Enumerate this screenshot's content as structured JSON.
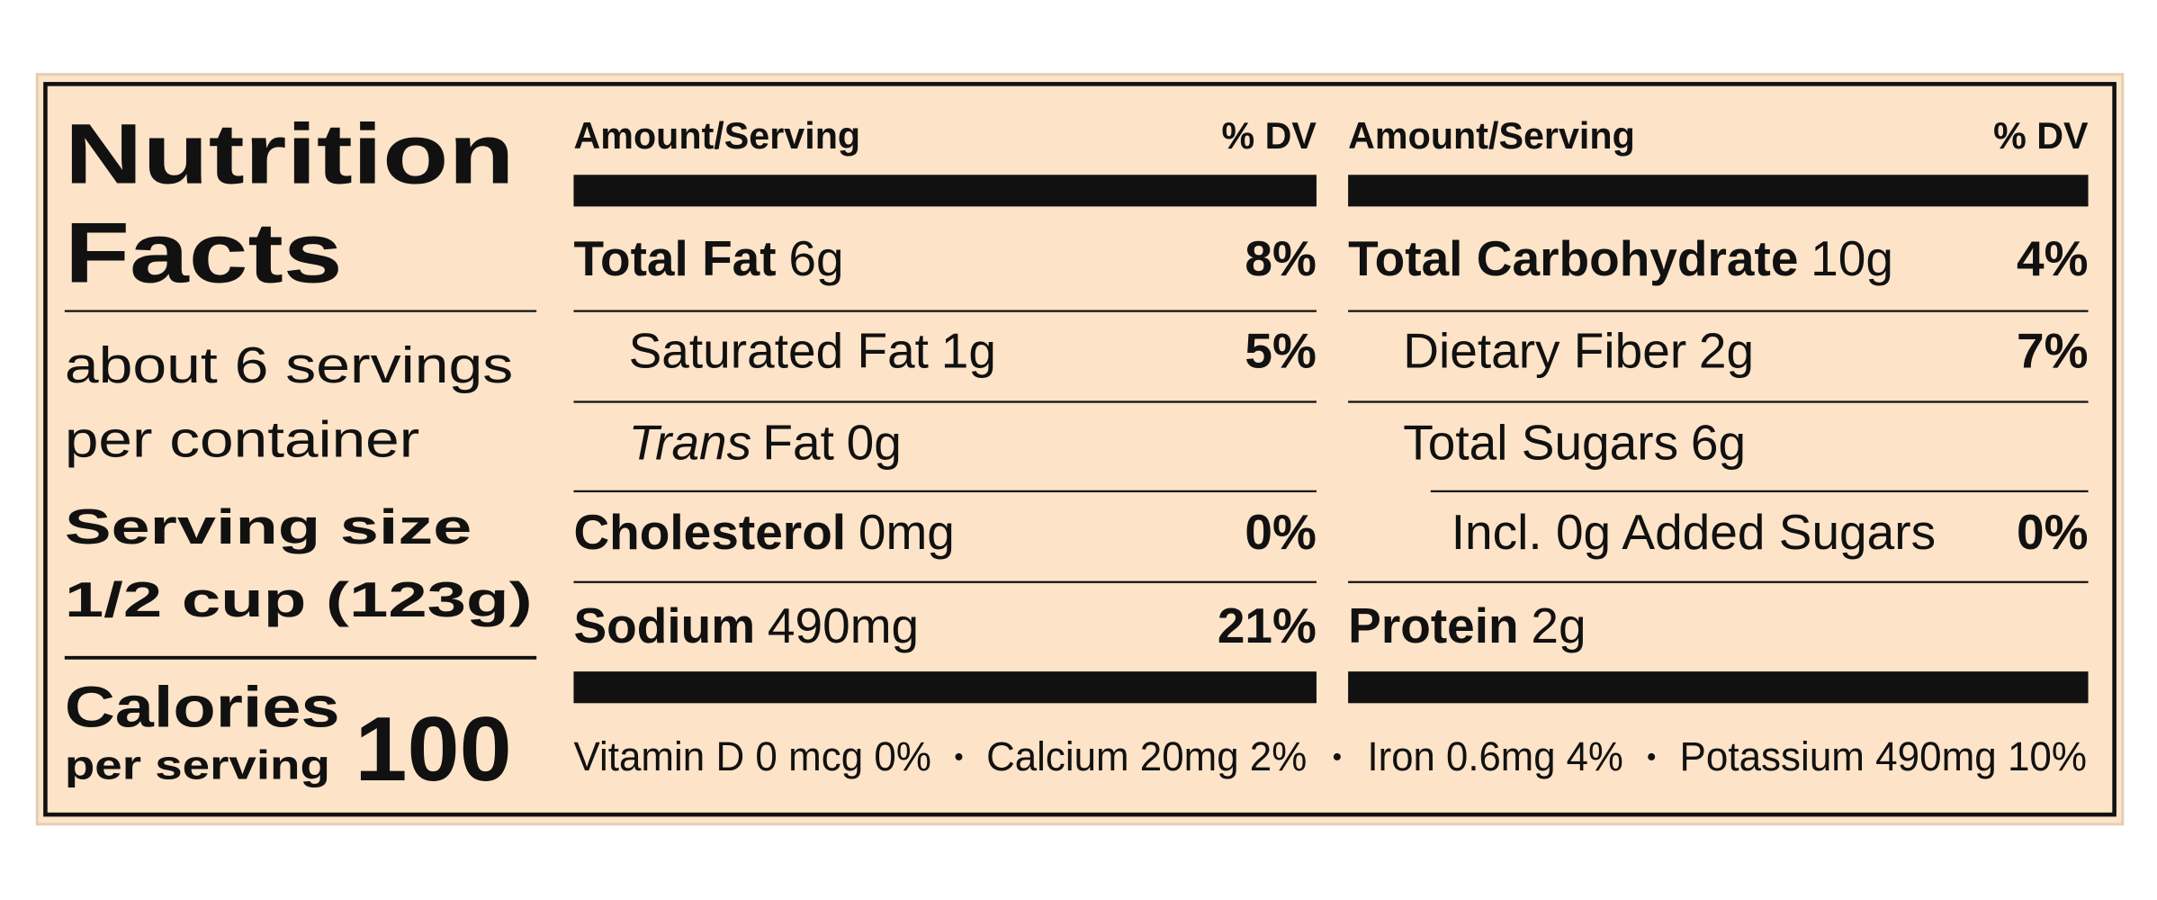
{
  "title": [
    "Nutrition",
    "Facts"
  ],
  "servings": [
    "about 6 servings",
    "per container"
  ],
  "serving_size": {
    "label": "Serving size",
    "value": "1/2 cup (123g)"
  },
  "calories": {
    "label": "Calories",
    "sublabel": "per serving",
    "value": "100"
  },
  "columns": [
    {
      "header": {
        "amount": "Amount/Serving",
        "dv": "% DV"
      },
      "rows": [
        {
          "name": "Total Fat",
          "amount": "6g",
          "dv": "8%",
          "level": 0
        },
        {
          "name": "Saturated Fat",
          "amount": "1g",
          "dv": "5%",
          "level": 1
        },
        {
          "italic": "Trans",
          "name": "Fat",
          "amount": "0g",
          "level": 1
        },
        {
          "name": "Cholesterol",
          "amount": "0mg",
          "dv": "0%",
          "level": 0
        },
        {
          "name": "Sodium",
          "amount": "490mg",
          "dv": "21%",
          "level": 0
        }
      ]
    },
    {
      "header": {
        "amount": "Amount/Serving",
        "dv": "% DV"
      },
      "rows": [
        {
          "name": "Total Carbohydrate",
          "amount": "10g",
          "dv": "4%",
          "level": 0
        },
        {
          "name": "Dietary Fiber",
          "amount": "2g",
          "dv": "7%",
          "level": 1
        },
        {
          "name": "Total Sugars",
          "amount": "6g",
          "level": 1
        },
        {
          "name": "Incl. 0g Added Sugars",
          "dv": "0%",
          "level": 2
        },
        {
          "name": "Protein",
          "amount": "2g",
          "level": 0
        }
      ]
    }
  ],
  "footer": [
    "Vitamin D 0 mcg 0%",
    "Calcium 20mg 2%",
    "Iron 0.6mg 4%",
    "Potassium 490mg 10%"
  ]
}
